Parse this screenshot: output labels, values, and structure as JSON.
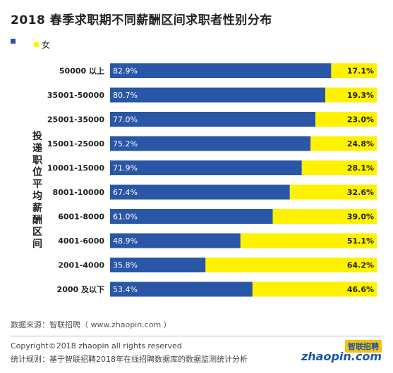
{
  "title": "2018 春季求职期不同薪酬区间求职者性别分布",
  "legend": {
    "male": {
      "label": "",
      "color": "#2956a6"
    },
    "female": {
      "label": "女",
      "color": "#fff200"
    }
  },
  "source": "数据来源：智联招聘（ www.zhaopin.com ）",
  "copyright": "Copyright©2018 zhaopin all rights reserved",
  "rule": "统计规则：基于智联招聘2018年在线招聘数据库的数据监测统计分析",
  "logo": {
    "cn": "智联招聘",
    "en": "zhaopin.com"
  },
  "chart_data": {
    "type": "bar",
    "orientation": "horizontal",
    "stacked": true,
    "ylabel": "投递职位平均薪酬区间",
    "categories": [
      "50000 以上",
      "35001-50000",
      "25001-35000",
      "15001-25000",
      "10001-15000",
      "8001-10000",
      "6001-8000",
      "4001-6000",
      "2001-4000",
      "2000 及以下"
    ],
    "series": [
      {
        "name": "",
        "color": "#2956a6",
        "values": [
          82.9,
          80.7,
          77.0,
          75.2,
          71.9,
          67.4,
          61.0,
          48.9,
          35.8,
          53.4
        ],
        "labels": [
          "82.9%",
          "80.7%",
          "77.0%",
          "75.2%",
          "71.9%",
          "67.4%",
          "61.0%",
          "48.9%",
          "35.8%",
          "53.4%"
        ]
      },
      {
        "name": "女",
        "color": "#fff200",
        "values": [
          17.1,
          19.3,
          23.0,
          24.8,
          28.1,
          32.6,
          39.0,
          51.1,
          64.2,
          46.6
        ],
        "labels": [
          "17.1%",
          "19.3%",
          "23.0%",
          "24.8%",
          "28.1%",
          "32.6%",
          "39.0%",
          "51.1%",
          "64.2%",
          "46.6%"
        ]
      }
    ],
    "xlim": [
      0,
      100
    ],
    "grid": false,
    "legend_position": "top-left"
  }
}
